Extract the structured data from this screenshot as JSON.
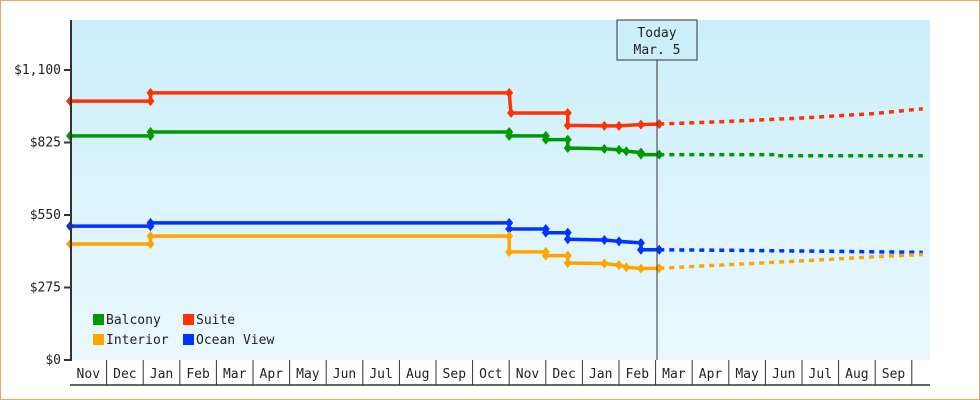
{
  "chart_data": {
    "type": "line",
    "title": "",
    "xlabel": "",
    "ylabel": "",
    "ylim": [
      0,
      1250
    ],
    "yticks": [
      {
        "value": 0,
        "label": "$0"
      },
      {
        "value": 275,
        "label": "$275"
      },
      {
        "value": 550,
        "label": "$550"
      },
      {
        "value": 825,
        "label": "$825"
      },
      {
        "value": 1100,
        "label": "$1,100"
      }
    ],
    "months": [
      "Nov",
      "Dec",
      "Jan",
      "Feb",
      "Mar",
      "Apr",
      "May",
      "Jun",
      "Jul",
      "Aug",
      "Sep",
      "Oct",
      "Nov",
      "Dec",
      "Jan",
      "Feb",
      "Mar",
      "Apr",
      "May",
      "Jun",
      "Jul",
      "Aug",
      "Sep"
    ],
    "today_marker": {
      "line1": "Today",
      "line2": "Mar. 5",
      "month_index": 16.1
    },
    "legend": [
      {
        "name": "Balcony",
        "color": "#009900"
      },
      {
        "name": "Suite",
        "color": "#ff3300"
      },
      {
        "name": "Interior",
        "color": "#ffa500"
      },
      {
        "name": "Ocean View",
        "color": "#0033ff"
      }
    ],
    "series": [
      {
        "name": "Suite",
        "color": "#ff3300",
        "history": [
          [
            0,
            982
          ],
          [
            2.2,
            982
          ],
          [
            2.2,
            1013
          ],
          [
            12.0,
            1013
          ],
          [
            12.05,
            937
          ],
          [
            13.6,
            937
          ],
          [
            13.6,
            890
          ],
          [
            14.6,
            888
          ],
          [
            15.0,
            888
          ],
          [
            15.6,
            893
          ],
          [
            16.1,
            895
          ]
        ],
        "forecast": [
          [
            16.1,
            895
          ],
          [
            18,
            905
          ],
          [
            20,
            918
          ],
          [
            22,
            935
          ],
          [
            23.3,
            953
          ]
        ]
      },
      {
        "name": "Balcony",
        "color": "#009900",
        "history": [
          [
            0,
            850
          ],
          [
            2.2,
            850
          ],
          [
            2.2,
            865
          ],
          [
            12.0,
            865
          ],
          [
            12.0,
            850
          ],
          [
            13.0,
            850
          ],
          [
            13.0,
            836
          ],
          [
            13.6,
            836
          ],
          [
            13.6,
            804
          ],
          [
            14.6,
            801
          ],
          [
            15.0,
            797
          ],
          [
            15.2,
            792
          ],
          [
            15.6,
            787
          ],
          [
            15.6,
            779
          ],
          [
            16.1,
            779
          ]
        ],
        "forecast": [
          [
            16.1,
            779
          ],
          [
            19.3,
            779
          ],
          [
            19.3,
            775
          ],
          [
            23.3,
            775
          ]
        ]
      },
      {
        "name": "Ocean View",
        "color": "#0033ff",
        "history": [
          [
            0,
            508
          ],
          [
            2.2,
            508
          ],
          [
            2.2,
            520
          ],
          [
            12.0,
            520
          ],
          [
            12.0,
            497
          ],
          [
            13.0,
            497
          ],
          [
            13.0,
            483
          ],
          [
            13.6,
            483
          ],
          [
            13.6,
            458
          ],
          [
            14.6,
            455
          ],
          [
            15.0,
            450
          ],
          [
            15.6,
            444
          ],
          [
            15.6,
            418
          ],
          [
            16.1,
            418
          ]
        ],
        "forecast": [
          [
            16.1,
            418
          ],
          [
            18,
            416
          ],
          [
            21,
            412
          ],
          [
            23.3,
            408
          ]
        ]
      },
      {
        "name": "Interior",
        "color": "#ffa500",
        "history": [
          [
            0,
            440
          ],
          [
            2.2,
            440
          ],
          [
            2.2,
            470
          ],
          [
            12.0,
            470
          ],
          [
            12.0,
            410
          ],
          [
            13.0,
            410
          ],
          [
            13.0,
            396
          ],
          [
            13.6,
            396
          ],
          [
            13.6,
            368
          ],
          [
            14.6,
            366
          ],
          [
            15.0,
            360
          ],
          [
            15.2,
            352
          ],
          [
            15.6,
            347
          ],
          [
            16.1,
            348
          ]
        ],
        "forecast": [
          [
            16.1,
            348
          ],
          [
            18,
            362
          ],
          [
            20,
            376
          ],
          [
            22,
            392
          ],
          [
            23.3,
            400
          ]
        ]
      }
    ]
  }
}
